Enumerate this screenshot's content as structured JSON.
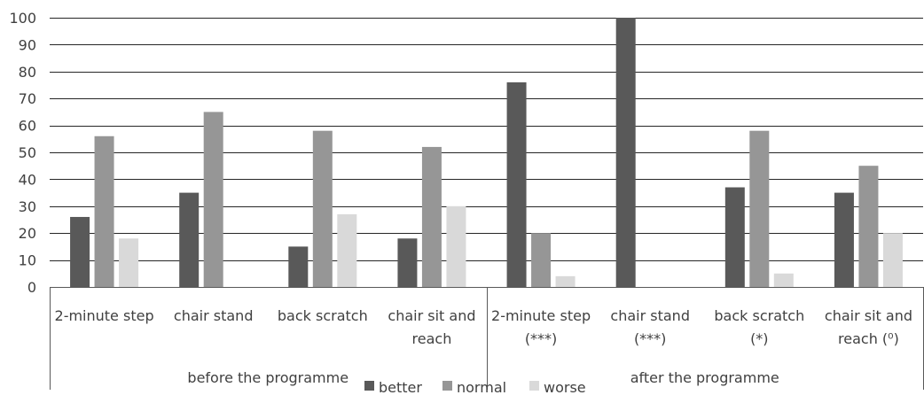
{
  "chart_data": {
    "type": "bar",
    "groups": [
      {
        "label": "before the programme",
        "categories": [
          {
            "lines": [
              "2-minute step"
            ]
          },
          {
            "lines": [
              "chair stand"
            ]
          },
          {
            "lines": [
              "back scratch"
            ]
          },
          {
            "lines": [
              "chair sit and",
              "reach"
            ]
          }
        ]
      },
      {
        "label": "after the programme",
        "categories": [
          {
            "lines": [
              "2-minute step",
              "(***)"
            ]
          },
          {
            "lines": [
              "chair stand",
              "(***)"
            ]
          },
          {
            "lines": [
              "back scratch",
              "(*)"
            ]
          },
          {
            "lines": [
              "chair sit and",
              "reach (⁰)"
            ]
          }
        ]
      }
    ],
    "series": [
      {
        "name": "better",
        "color": "#595959",
        "values": [
          26,
          35,
          15,
          18,
          76,
          100,
          37,
          35
        ]
      },
      {
        "name": "normal",
        "color": "#969696",
        "values": [
          56,
          65,
          58,
          52,
          20,
          0,
          58,
          45
        ]
      },
      {
        "name": "worse",
        "color": "#d9d9d9",
        "values": [
          18,
          0,
          27,
          30,
          4,
          0,
          5,
          20
        ]
      }
    ],
    "ylim": [
      0,
      100
    ],
    "yticks": [
      0,
      10,
      20,
      30,
      40,
      50,
      60,
      70,
      80,
      90,
      100
    ],
    "grid": true,
    "legend": "bottom",
    "title": "",
    "xlabel": "",
    "ylabel": ""
  }
}
